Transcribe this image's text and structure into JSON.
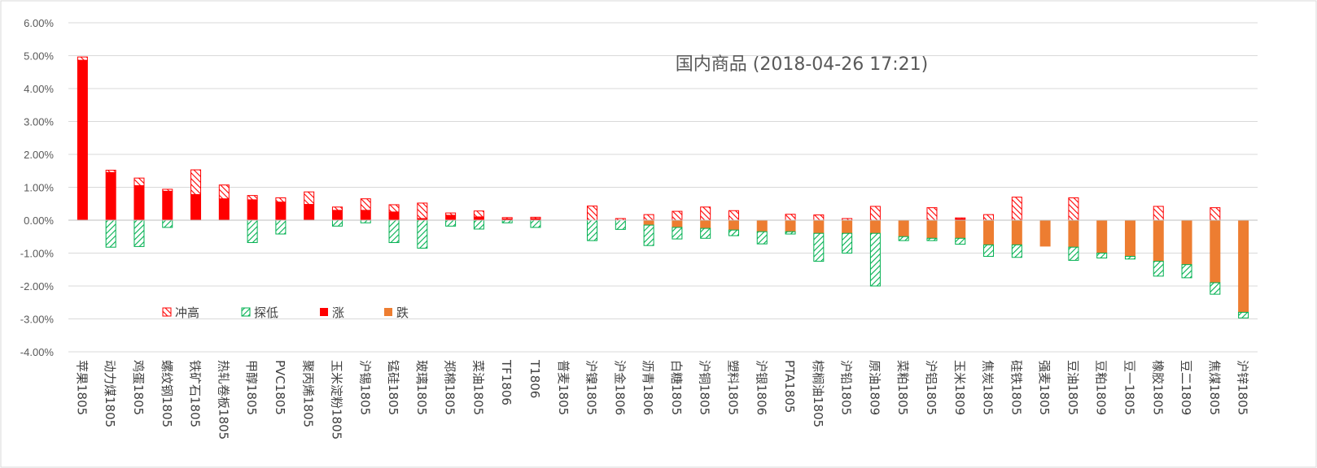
{
  "chart_data": {
    "type": "bar",
    "title": "国内商品 (2018-04-26 17:21)",
    "ylim": [
      -4,
      6
    ],
    "yticks": [
      "-4.00%",
      "-3.00%",
      "-2.00%",
      "-1.00%",
      "0.00%",
      "1.00%",
      "2.00%",
      "3.00%",
      "4.00%",
      "5.00%",
      "6.00%"
    ],
    "grid": true,
    "legend_position": "bottom-left",
    "legend": [
      "冲高",
      "探低",
      "涨",
      "跌"
    ],
    "colors": {
      "rise": "#ff0000",
      "fall": "#ed7d31",
      "high_hatch": "#ff0000",
      "low_hatch": "#00b050"
    },
    "categories": [
      "苹果1805",
      "动力煤1805",
      "鸡蛋1805",
      "螺纹钢1805",
      "铁矿石1805",
      "热轧卷板1805",
      "甲醇1805",
      "PVC1805",
      "聚丙烯1805",
      "玉米淀粉1805",
      "沪锡1805",
      "锰硅1805",
      "玻璃1805",
      "郑棉1805",
      "菜油1805",
      "TF1806",
      "T1806",
      "普麦1805",
      "沪镍1805",
      "沪金1806",
      "沥青1806",
      "白糖1805",
      "沪铜1805",
      "塑料1805",
      "沪银1806",
      "PTA1805",
      "棕榈油1805",
      "沪铅1805",
      "原油1809",
      "菜粕1805",
      "沪铝1805",
      "玉米1809",
      "焦炭1805",
      "硅铁1805",
      "强麦1805",
      "豆油1805",
      "豆粕1809",
      "豆一1805",
      "橡胶1805",
      "豆二1809",
      "焦煤1805",
      "沪锌1805"
    ],
    "series": [
      {
        "name": "涨",
        "values": [
          4.86,
          1.45,
          1.05,
          0.88,
          0.78,
          0.65,
          0.62,
          0.55,
          0.48,
          0.3,
          0.3,
          0.25,
          0.05,
          0.15,
          0.1,
          0.04,
          0.05,
          0,
          0,
          0,
          0,
          0,
          0,
          0,
          0,
          0,
          0,
          0,
          0,
          0,
          0,
          0.04,
          0,
          0,
          0,
          0,
          0,
          0,
          0,
          0,
          0,
          0
        ]
      },
      {
        "name": "跌",
        "values": [
          0,
          0,
          0,
          0,
          0,
          0,
          0,
          0,
          0,
          0,
          0,
          0,
          0,
          0,
          0,
          0,
          0,
          0,
          0,
          0,
          -0.15,
          -0.22,
          -0.25,
          -0.3,
          -0.35,
          -0.35,
          -0.4,
          -0.4,
          -0.4,
          -0.5,
          -0.55,
          -0.55,
          -0.75,
          -0.75,
          -0.8,
          -0.82,
          -1.0,
          -1.1,
          -1.25,
          -1.35,
          -1.9,
          -2.8
        ]
      },
      {
        "name": "冲高",
        "values": [
          0.1,
          0.07,
          0.23,
          0.06,
          0.75,
          0.42,
          0.13,
          0.13,
          0.38,
          0.1,
          0.35,
          0.22,
          0.47,
          0.07,
          0.18,
          0.04,
          0.04,
          0,
          0.43,
          0.05,
          0.17,
          0.27,
          0.4,
          0.29,
          0,
          0.18,
          0.16,
          0.05,
          0.42,
          0,
          0.38,
          0.03,
          0.17,
          0.7,
          0,
          0.68,
          0,
          0,
          0.42,
          0,
          0.38,
          0
        ]
      },
      {
        "name": "探低",
        "values": [
          0,
          -0.82,
          -0.8,
          -0.22,
          0,
          0,
          -0.68,
          -0.42,
          0,
          -0.18,
          -0.08,
          -0.68,
          -0.85,
          -0.18,
          -0.27,
          -0.08,
          -0.22,
          0,
          -0.62,
          -0.28,
          -0.62,
          -0.35,
          -0.3,
          -0.17,
          -0.37,
          -0.07,
          -0.85,
          -0.6,
          -1.6,
          -0.12,
          -0.07,
          -0.18,
          -0.35,
          -0.38,
          0,
          -0.4,
          -0.15,
          -0.08,
          -0.45,
          -0.4,
          -0.35,
          -0.17
        ]
      }
    ]
  }
}
